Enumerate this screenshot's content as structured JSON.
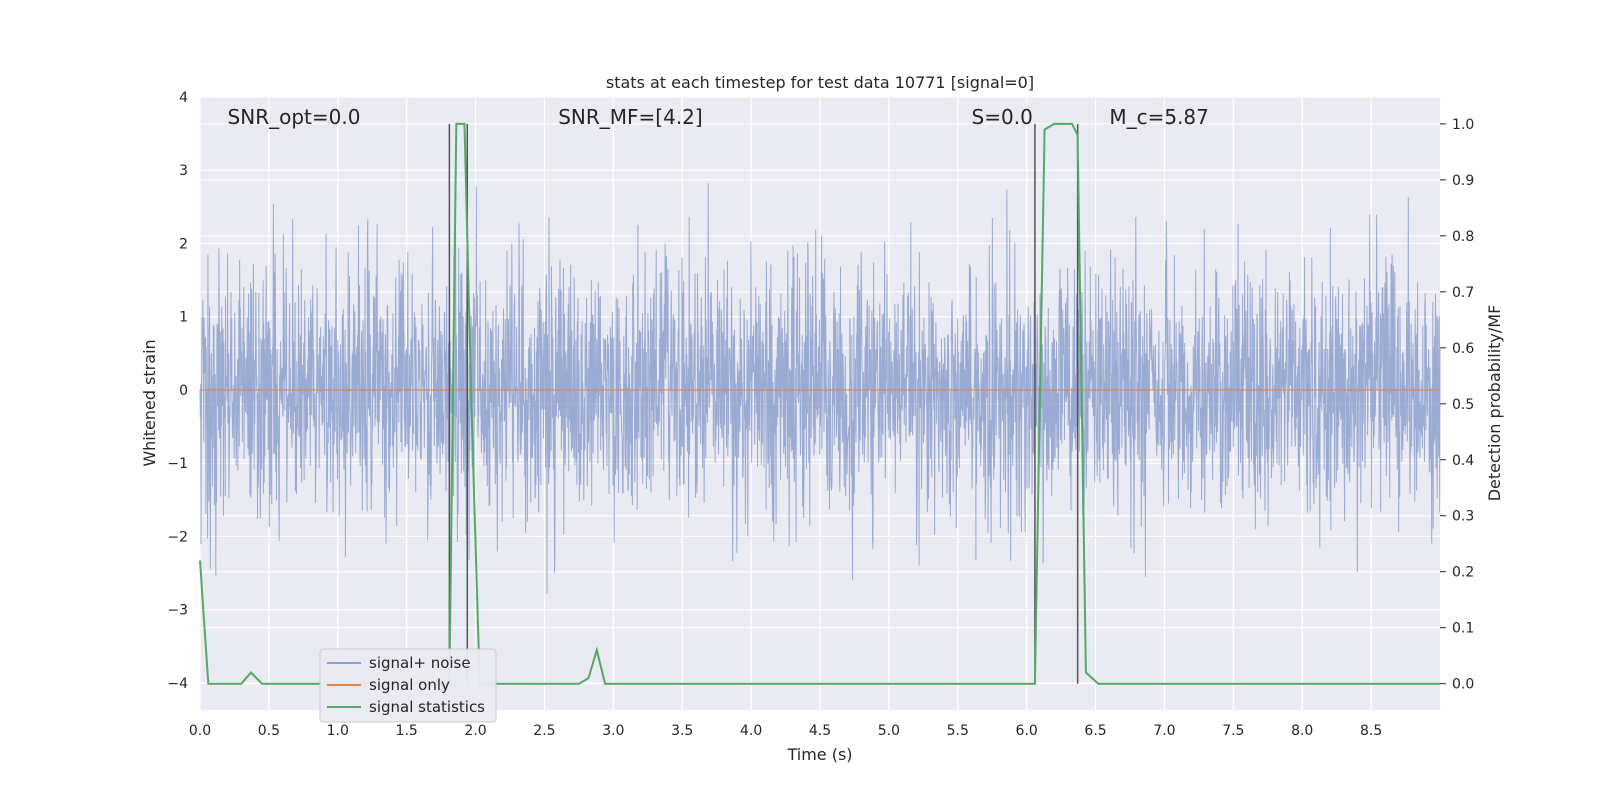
{
  "chart_data": {
    "type": "line",
    "title": "stats at each timestep for test data 10771 [signal=0]",
    "xlabel": "Time (s)",
    "ylabel_left": "Whitened strain",
    "ylabel_right": "Detection probability/MF",
    "xlim": [
      0,
      9.0
    ],
    "ylim_left": [
      -4.37,
      4.0
    ],
    "ylim_right": [
      -0.047,
      1.048
    ],
    "x_ticks": [
      0.0,
      0.5,
      1.0,
      1.5,
      2.0,
      2.5,
      3.0,
      3.5,
      4.0,
      4.5,
      5.0,
      5.5,
      6.0,
      6.5,
      7.0,
      7.5,
      8.0,
      8.5
    ],
    "x_tick_labels": [
      "0.0",
      "0.5",
      "1.0",
      "1.5",
      "2.0",
      "2.5",
      "3.0",
      "3.5",
      "4.0",
      "4.5",
      "5.0",
      "5.5",
      "6.0",
      "6.5",
      "7.0",
      "7.5",
      "8.0",
      "8.5"
    ],
    "y_ticks_left": [
      -4,
      -3,
      -2,
      -1,
      0,
      1,
      2,
      3,
      4
    ],
    "y_tick_labels_left": [
      "−4",
      "−3",
      "−2",
      "−1",
      "0",
      "1",
      "2",
      "3",
      "4"
    ],
    "y_ticks_right": [
      0.0,
      0.1,
      0.2,
      0.3,
      0.4,
      0.5,
      0.6,
      0.7,
      0.8,
      0.9,
      1.0
    ],
    "y_tick_labels_right": [
      "0.0",
      "0.1",
      "0.2",
      "0.3",
      "0.4",
      "0.5",
      "0.6",
      "0.7",
      "0.8",
      "0.9",
      "1.0"
    ],
    "annotations": [
      {
        "text": "SNR_opt=0.0",
        "x": 0.2
      },
      {
        "text": "SNR_MF=[4.2]",
        "x": 2.6
      },
      {
        "text": "S=0.0",
        "x": 5.6
      },
      {
        "text": "M_c=5.87",
        "x": 6.6
      }
    ],
    "noise": {
      "name": "signal+ noise",
      "color": "#8c9fcc",
      "sigma": 0.85,
      "n_points": 3600,
      "y_range_typical": [
        -2.5,
        2.5
      ]
    },
    "signal_only": {
      "name": "signal only",
      "color": "#dd8452",
      "value": 0
    },
    "statistics": {
      "name": "signal statistics",
      "color": "#55a868",
      "x": [
        0.0,
        0.06,
        0.1,
        0.3,
        0.37,
        0.45,
        0.7,
        0.8,
        1.5,
        1.81,
        1.86,
        1.92,
        1.97,
        2.03,
        2.08,
        2.2,
        2.75,
        2.82,
        2.88,
        2.94,
        3.0,
        6.06,
        6.13,
        6.2,
        6.33,
        6.37,
        6.43,
        6.52,
        7.0,
        9.0
      ],
      "y": [
        0.22,
        0.0,
        0.0,
        0.0,
        0.02,
        0.0,
        0.0,
        0.0,
        0.0,
        0.0,
        1.0,
        1.0,
        0.5,
        0.0,
        0.0,
        0.0,
        0.0,
        0.01,
        0.06,
        0.0,
        0.0,
        0.0,
        0.99,
        1.0,
        1.0,
        0.98,
        0.02,
        0.0,
        0.0,
        0.0
      ]
    },
    "markers": [
      {
        "x": 1.81,
        "ymin": 0.0,
        "ymax": 1.0,
        "color": "#555555"
      },
      {
        "x": 1.94,
        "ymin": 0.0,
        "ymax": 1.0,
        "color": "#555555"
      },
      {
        "x": 6.06,
        "ymin": 0.0,
        "ymax": 1.0,
        "color": "#555555"
      },
      {
        "x": 6.37,
        "ymin": 0.0,
        "ymax": 1.0,
        "color": "#555555"
      }
    ],
    "legend": {
      "position": "lower-left",
      "entries": [
        "signal+ noise",
        "signal only",
        "signal statistics"
      ]
    },
    "grid": true,
    "background": "#eaeaf2"
  }
}
